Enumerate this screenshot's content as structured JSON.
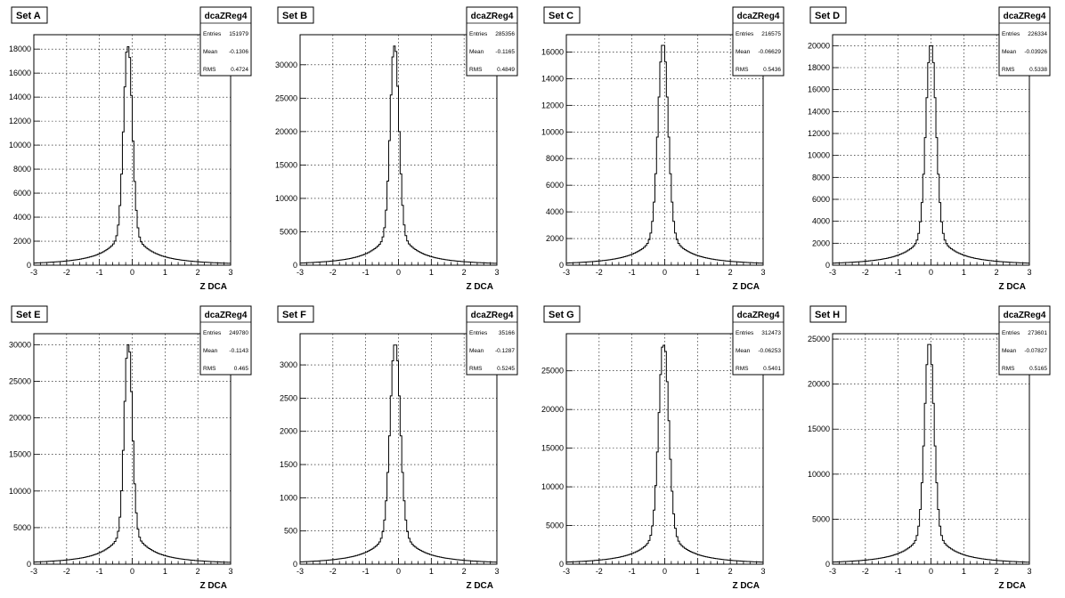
{
  "chart_data": [
    {
      "type": "histogram",
      "title": "Set A",
      "histname": "dcaZReg4",
      "stats": {
        "entries_label": "Entries",
        "entries": "151979",
        "mean_label": "Mean",
        "mean": "-0.1306",
        "rms_label": "RMS",
        "rms": "0.4724"
      },
      "xlabel": "Z DCA",
      "ylabel": "",
      "xlim": [
        -3,
        3
      ],
      "ylim": [
        0,
        19200
      ],
      "xticks": [
        "-3",
        "-2",
        "-1",
        "0",
        "1",
        "2",
        "3"
      ],
      "yticks": [
        0,
        2000,
        4000,
        6000,
        8000,
        10000,
        12000,
        14000,
        16000,
        18000
      ],
      "peak": 18200,
      "peak_x": -0.13,
      "width": 0.13,
      "tail": 0.028,
      "grid": true
    },
    {
      "type": "histogram",
      "title": "Set B",
      "histname": "dcaZReg4",
      "stats": {
        "entries_label": "Entries",
        "entries": "285356",
        "mean_label": "Mean",
        "mean": "-0.1165",
        "rms_label": "RMS",
        "rms": "0.4849"
      },
      "xlabel": "Z DCA",
      "ylabel": "",
      "xlim": [
        -3,
        3
      ],
      "ylim": [
        0,
        34500
      ],
      "xticks": [
        "-3",
        "-2",
        "-1",
        "0",
        "1",
        "2",
        "3"
      ],
      "yticks": [
        0,
        5000,
        10000,
        15000,
        20000,
        25000,
        30000
      ],
      "peak": 32800,
      "peak_x": -0.12,
      "width": 0.13,
      "tail": 0.028,
      "grid": true
    },
    {
      "type": "histogram",
      "title": "Set C",
      "histname": "dcaZReg4",
      "stats": {
        "entries_label": "Entries",
        "entries": "216575",
        "mean_label": "Mean",
        "mean": "-0.06629",
        "rms_label": "RMS",
        "rms": "0.5436"
      },
      "xlabel": "Z DCA",
      "ylabel": "",
      "xlim": [
        -3,
        3
      ],
      "ylim": [
        0,
        17300
      ],
      "xticks": [
        "-3",
        "-2",
        "-1",
        "0",
        "1",
        "2",
        "3"
      ],
      "yticks": [
        0,
        2000,
        4000,
        6000,
        8000,
        10000,
        12000,
        14000,
        16000
      ],
      "peak": 16500,
      "peak_x": -0.05,
      "width": 0.15,
      "tail": 0.032,
      "grid": true
    },
    {
      "type": "histogram",
      "title": "Set D",
      "histname": "dcaZReg4",
      "stats": {
        "entries_label": "Entries",
        "entries": "226334",
        "mean_label": "Mean",
        "mean": "-0.03926",
        "rms_label": "RMS",
        "rms": "0.5338"
      },
      "xlabel": "Z DCA",
      "ylabel": "",
      "xlim": [
        -3,
        3
      ],
      "ylim": [
        0,
        21000
      ],
      "xticks": [
        "-3",
        "-2",
        "-1",
        "0",
        "1",
        "2",
        "3"
      ],
      "yticks": [
        0,
        2000,
        4000,
        6000,
        8000,
        10000,
        12000,
        14000,
        16000,
        18000,
        20000
      ],
      "peak": 20000,
      "peak_x": 0.0,
      "width": 0.15,
      "tail": 0.03,
      "grid": true
    },
    {
      "type": "histogram",
      "title": "Set E",
      "histname": "dcaZReg4",
      "stats": {
        "entries_label": "Entries",
        "entries": "249780",
        "mean_label": "Mean",
        "mean": "-0.1143",
        "rms_label": "RMS",
        "rms": "0.465"
      },
      "xlabel": "Z DCA",
      "ylabel": "",
      "xlim": [
        -3,
        3
      ],
      "ylim": [
        0,
        31500
      ],
      "xticks": [
        "-3",
        "-2",
        "-1",
        "0",
        "1",
        "2",
        "3"
      ],
      "yticks": [
        0,
        5000,
        10000,
        15000,
        20000,
        25000,
        30000
      ],
      "peak": 30000,
      "peak_x": -0.12,
      "width": 0.12,
      "tail": 0.028,
      "grid": true
    },
    {
      "type": "histogram",
      "title": "Set F",
      "histname": "dcaZReg4",
      "stats": {
        "entries_label": "Entries",
        "entries": "35166",
        "mean_label": "Mean",
        "mean": "-0.1287",
        "rms_label": "RMS",
        "rms": "0.5245"
      },
      "xlabel": "Z DCA",
      "ylabel": "",
      "xlim": [
        -3,
        3
      ],
      "ylim": [
        0,
        3470
      ],
      "xticks": [
        "-3",
        "-2",
        "-1",
        "0",
        "1",
        "2",
        "3"
      ],
      "yticks": [
        0,
        500,
        1000,
        1500,
        2000,
        2500,
        3000
      ],
      "peak": 3300,
      "peak_x": -0.1,
      "width": 0.15,
      "tail": 0.035,
      "grid": true
    },
    {
      "type": "histogram",
      "title": "Set G",
      "histname": "dcaZReg4",
      "stats": {
        "entries_label": "Entries",
        "entries": "312473",
        "mean_label": "Mean",
        "mean": "-0.06253",
        "rms_label": "RMS",
        "rms": "0.5401"
      },
      "xlabel": "Z DCA",
      "ylabel": "",
      "xlim": [
        -3,
        3
      ],
      "ylim": [
        0,
        29800
      ],
      "xticks": [
        "-3",
        "-2",
        "-1",
        "0",
        "1",
        "2",
        "3"
      ],
      "yticks": [
        0,
        5000,
        10000,
        15000,
        20000,
        25000
      ],
      "peak": 28300,
      "peak_x": -0.03,
      "width": 0.15,
      "tail": 0.032,
      "grid": true
    },
    {
      "type": "histogram",
      "title": "Set H",
      "histname": "dcaZReg4",
      "stats": {
        "entries_label": "Entries",
        "entries": "273601",
        "mean_label": "Mean",
        "mean": "-0.07827",
        "rms_label": "RMS",
        "rms": "0.5165"
      },
      "xlabel": "Z DCA",
      "ylabel": "",
      "xlim": [
        -3,
        3
      ],
      "ylim": [
        0,
        25600
      ],
      "xticks": [
        "-3",
        "-2",
        "-1",
        "0",
        "1",
        "2",
        "3"
      ],
      "yticks": [
        0,
        5000,
        10000,
        15000,
        20000,
        25000
      ],
      "peak": 24400,
      "peak_x": -0.05,
      "width": 0.14,
      "tail": 0.03,
      "grid": true
    }
  ]
}
